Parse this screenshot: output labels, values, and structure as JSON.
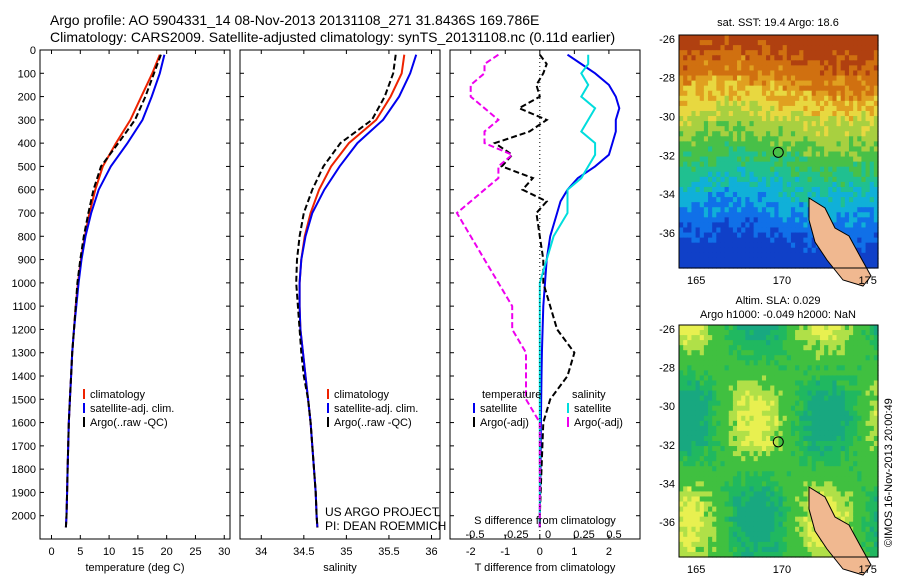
{
  "header": {
    "line1": "Argo profile: AO 5904331_14 08-Nov-2013 20131108_271 31.8436S 169.786E",
    "line2": "Climatology: CARS2009. Satellite-adjusted climatology: synTS_20131108.nc (0.11d earlier)"
  },
  "footer": {
    "project": "US ARGO PROJECT",
    "pi": "PI: DEAN ROEMMICH",
    "imos": "©IMOS 16-Nov-2013 20:00:49"
  },
  "colors": {
    "climatology": "#ee2200",
    "satellite": "#0000ee",
    "argo": "#000000",
    "sat_salinity": "#00dddd",
    "argo_salinity": "#ee00ee"
  },
  "chart_data": [
    {
      "type": "line",
      "panel": "temperature",
      "xlabel": "temperature (deg C)",
      "xlim": [
        -2,
        31
      ],
      "xticks": [
        0,
        5,
        10,
        15,
        20,
        25,
        30
      ],
      "ylim": [
        2100,
        0
      ],
      "yticks": [
        0,
        100,
        200,
        300,
        400,
        500,
        600,
        700,
        800,
        900,
        1000,
        1100,
        1200,
        1300,
        1400,
        1500,
        1600,
        1700,
        1800,
        1900,
        2000
      ],
      "legend": [
        "climatology",
        "satellite-adj. clim.",
        "Argo(..raw -QC)"
      ],
      "pressure": [
        20,
        100,
        200,
        300,
        400,
        500,
        600,
        700,
        800,
        900,
        1000,
        1100,
        1200,
        1300,
        1400,
        1500,
        1600,
        1700,
        1800,
        1900,
        2000,
        2050
      ],
      "series": [
        {
          "name": "climatology",
          "color": "#ee2200",
          "values": [
            18.8,
            17.5,
            15.6,
            13.7,
            11.2,
            8.9,
            7.6,
            6.6,
            5.8,
            5.1,
            4.6,
            4.2,
            3.9,
            3.6,
            3.4,
            3.2,
            3.0,
            2.9,
            2.8,
            2.7,
            2.6,
            2.5
          ]
        },
        {
          "name": "satellite-adj. clim.",
          "color": "#0000ee",
          "values": [
            19.6,
            18.8,
            17.4,
            15.8,
            13.2,
            10.3,
            8.2,
            6.9,
            5.9,
            5.2,
            4.7,
            4.3,
            3.9,
            3.6,
            3.4,
            3.2,
            3.0,
            2.9,
            2.8,
            2.7,
            2.6,
            2.5
          ]
        },
        {
          "name": "Argo(..raw -QC)",
          "color": "#000000",
          "dashed": true,
          "values": [
            19.0,
            17.8,
            16.3,
            14.5,
            11.6,
            8.6,
            7.3,
            6.4,
            5.6,
            5.0,
            4.5,
            4.2,
            3.9,
            3.6,
            3.4,
            3.2,
            3.0,
            2.9,
            2.8,
            2.7,
            2.6,
            2.5
          ]
        }
      ]
    },
    {
      "type": "line",
      "panel": "salinity",
      "xlabel": "salinity",
      "xlim": [
        33.75,
        36.1
      ],
      "xticks": [
        34,
        34.5,
        35,
        35.5,
        36
      ],
      "ylim": [
        2100,
        0
      ],
      "legend": [
        "climatology",
        "satellite-adj. clim.",
        "Argo(..raw -QC)"
      ],
      "pressure": [
        20,
        100,
        200,
        300,
        400,
        500,
        600,
        700,
        800,
        900,
        1000,
        1100,
        1200,
        1300,
        1400,
        1500,
        1600,
        1700,
        1800,
        1900,
        2000,
        2050
      ],
      "series": [
        {
          "name": "climatology",
          "color": "#ee2200",
          "values": [
            35.68,
            35.65,
            35.52,
            35.35,
            35.03,
            34.82,
            34.68,
            34.58,
            34.51,
            34.47,
            34.45,
            34.45,
            34.46,
            34.49,
            34.52,
            34.55,
            34.58,
            34.6,
            34.62,
            34.64,
            34.65,
            34.66
          ]
        },
        {
          "name": "satellite-adj. clim.",
          "color": "#0000ee",
          "values": [
            35.82,
            35.75,
            35.62,
            35.43,
            35.13,
            34.92,
            34.74,
            34.6,
            34.52,
            34.47,
            34.45,
            34.45,
            34.46,
            34.49,
            34.52,
            34.55,
            34.58,
            34.6,
            34.62,
            34.64,
            34.65,
            34.66
          ]
        },
        {
          "name": "Argo(..raw -QC)",
          "color": "#000000",
          "dashed": true,
          "values": [
            35.58,
            35.55,
            35.45,
            35.3,
            34.93,
            34.73,
            34.6,
            34.5,
            34.45,
            34.42,
            34.41,
            34.43,
            34.45,
            34.47,
            34.5,
            34.55,
            34.58,
            34.6,
            34.62,
            34.64,
            34.65,
            34.66
          ]
        }
      ]
    },
    {
      "type": "line",
      "panel": "difference",
      "xlabel": "T difference from climatology",
      "xlabel2": "S difference from climatology",
      "xlim": [
        -2.6,
        2.9
      ],
      "xticks": [
        -2,
        -1,
        0,
        1,
        2
      ],
      "xticks_s": [
        "-0.5",
        "-0.25",
        "0",
        "0.25",
        "0.5"
      ],
      "ylim": [
        2100,
        0
      ],
      "legend_temperature_title": "temperature",
      "legend_salinity_title": "salinity",
      "legend_temperature": [
        "satellite",
        "Argo(-adj)"
      ],
      "legend_salinity": [
        "satellite",
        "Argo(-adj)"
      ],
      "pressure": [
        20,
        60,
        100,
        150,
        200,
        250,
        300,
        350,
        400,
        450,
        500,
        550,
        600,
        650,
        700,
        800,
        900,
        1000,
        1100,
        1200,
        1300,
        1400,
        1500,
        1600,
        1800,
        2000,
        2050
      ],
      "series": [
        {
          "name": "satellite T",
          "color": "#0000ee",
          "values": [
            0.8,
            1.2,
            1.6,
            2.0,
            2.2,
            2.3,
            2.2,
            2.2,
            2.1,
            2.0,
            1.6,
            1.1,
            0.8,
            0.6,
            0.5,
            0.3,
            0.2,
            0.15,
            0.1,
            0.08,
            0.06,
            0.05,
            0.04,
            0.03,
            0.02,
            0.0,
            0.0
          ]
        },
        {
          "name": "Argo T",
          "color": "#000000",
          "dashed": true,
          "values": [
            0.0,
            0.2,
            0.1,
            -0.1,
            0.0,
            -0.6,
            0.2,
            -0.3,
            -1.3,
            -0.8,
            -1.1,
            -0.2,
            -0.5,
            0.2,
            -0.1,
            0.0,
            0.1,
            0.1,
            0.3,
            0.5,
            1.0,
            0.8,
            0.3,
            0.1,
            0.05,
            0.0,
            0.0
          ]
        },
        {
          "name": "satellite S",
          "color": "#00dddd",
          "values": [
            0.35,
            0.35,
            0.3,
            0.35,
            0.3,
            0.4,
            0.35,
            0.3,
            0.4,
            0.4,
            0.35,
            0.3,
            0.2,
            0.2,
            0.2,
            0.1,
            0.05,
            0.0,
            0.0,
            0.0,
            0.0,
            0.0,
            0.0,
            0.0,
            0.0,
            0.0,
            0.0
          ]
        },
        {
          "name": "Argo S",
          "color": "#ee00ee",
          "dashed": true,
          "values": [
            -0.3,
            -0.4,
            -0.4,
            -0.5,
            -0.5,
            -0.4,
            -0.3,
            -0.4,
            -0.4,
            -0.2,
            -0.3,
            -0.3,
            -0.4,
            -0.5,
            -0.6,
            -0.5,
            -0.4,
            -0.3,
            -0.2,
            -0.2,
            -0.1,
            -0.1,
            -0.1,
            0.0,
            0.0,
            0.0,
            0.0
          ]
        }
      ]
    },
    {
      "type": "heatmap",
      "panel": "sst-map",
      "title": "sat. SST: 19.4  Argo: 18.6",
      "xticks": [
        "165",
        "170",
        "175"
      ],
      "yticks": [
        "-26",
        "-28",
        "-30",
        "-32",
        "-34",
        "-36"
      ],
      "xlim": [
        164,
        175.6
      ],
      "ylim": [
        -37.8,
        -25.8
      ],
      "marker": {
        "lon": 169.786,
        "lat": -31.8436
      }
    },
    {
      "type": "heatmap",
      "panel": "sla-map",
      "title": "Altim. SLA: 0.029",
      "subtitle": "Argo h1000: -0.049  h2000: NaN",
      "xticks": [
        "165",
        "170",
        "175"
      ],
      "yticks": [
        "-26",
        "-28",
        "-30",
        "-32",
        "-34",
        "-36"
      ],
      "xlim": [
        164,
        175.6
      ],
      "ylim": [
        -37.8,
        -25.8
      ],
      "marker": {
        "lon": 169.786,
        "lat": -31.8436
      }
    }
  ]
}
